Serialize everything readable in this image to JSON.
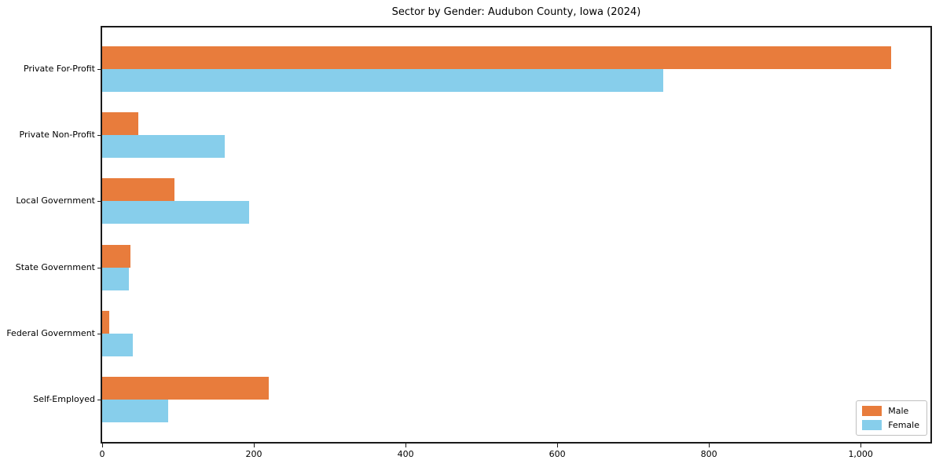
{
  "chart_data": {
    "type": "bar",
    "orientation": "horizontal",
    "title": "Sector by Gender: Audubon County, Iowa (2024)",
    "xlabel": "",
    "ylabel": "",
    "categories": [
      "Private For-Profit",
      "Private Non-Profit",
      "Local Government",
      "State Government",
      "Federal Government",
      "Self-Employed"
    ],
    "series": [
      {
        "name": "Male",
        "color": "#E87C3C",
        "values": [
          1040,
          48,
          95,
          37,
          9,
          220
        ]
      },
      {
        "name": "Female",
        "color": "#87CEEB",
        "values": [
          740,
          162,
          194,
          35,
          40,
          87
        ]
      }
    ],
    "xlim": [
      0,
      1092
    ],
    "x_ticks": [
      0,
      200,
      400,
      600,
      800,
      1000
    ],
    "x_tick_labels": [
      "0",
      "200",
      "400",
      "600",
      "800",
      "1,000"
    ],
    "grid": false,
    "legend_position": "lower right"
  },
  "colors": {
    "male": "#E87C3C",
    "female": "#87CEEB",
    "spine": "#1a1a1a",
    "legend_border": "#c0c0c0",
    "text": "#000000",
    "background": "#ffffff"
  }
}
